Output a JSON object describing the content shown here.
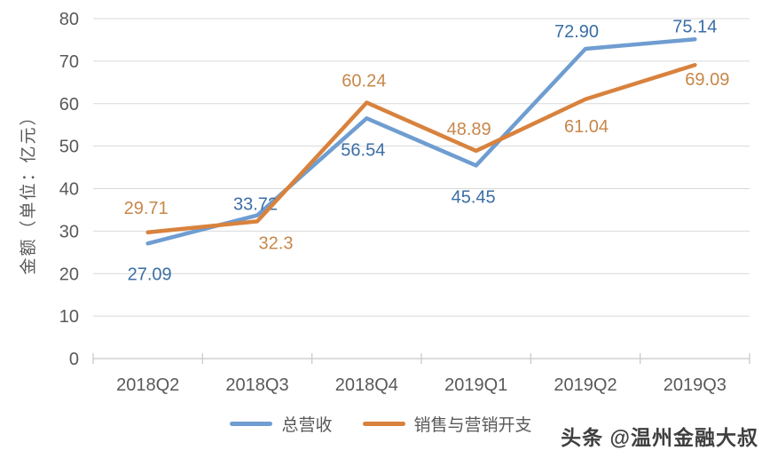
{
  "chart_data": {
    "type": "line",
    "title": "",
    "xlabel": "",
    "ylabel": "金额（单位：亿元）",
    "ylim": [
      0,
      80
    ],
    "yticks": [
      0,
      10,
      20,
      30,
      40,
      50,
      60,
      70,
      80
    ],
    "grid": true,
    "legend_position": "bottom",
    "categories": [
      "2018Q2",
      "2018Q3",
      "2018Q4",
      "2019Q1",
      "2019Q2",
      "2019Q3"
    ],
    "series": [
      {
        "name": "总营收",
        "color": "#6F9DD1",
        "label_color": "#3A6EA5",
        "values": [
          27.09,
          33.72,
          56.54,
          45.45,
          72.9,
          75.14
        ],
        "labels": [
          "27.09",
          "33.72",
          "56.54",
          "45.45",
          "72.90",
          "75.14"
        ],
        "label_offsets": [
          [
            2,
            41
          ],
          [
            -2,
            -6
          ],
          [
            -4,
            42
          ],
          [
            -3,
            42
          ],
          [
            -10,
            -13
          ],
          [
            0,
            -8
          ]
        ]
      },
      {
        "name": "销售与营销开支",
        "color": "#D8823D",
        "label_color": "#C7874A",
        "values": [
          29.71,
          32.3,
          60.24,
          48.89,
          61.04,
          69.09
        ],
        "labels": [
          "29.71",
          "32.3",
          "60.24",
          "48.89",
          "61.04",
          "69.09"
        ],
        "label_offsets": [
          [
            -2,
            -21
          ],
          [
            21,
            31
          ],
          [
            -3,
            -18
          ],
          [
            -8,
            -18
          ],
          [
            1,
            37
          ],
          [
            14,
            23
          ]
        ]
      }
    ]
  },
  "colors": {
    "grid": "#D9D9D9",
    "axis": "#C6C6C6",
    "tick_label": "#595959"
  },
  "watermark": {
    "text": "头条 @温州金融大叔"
  }
}
